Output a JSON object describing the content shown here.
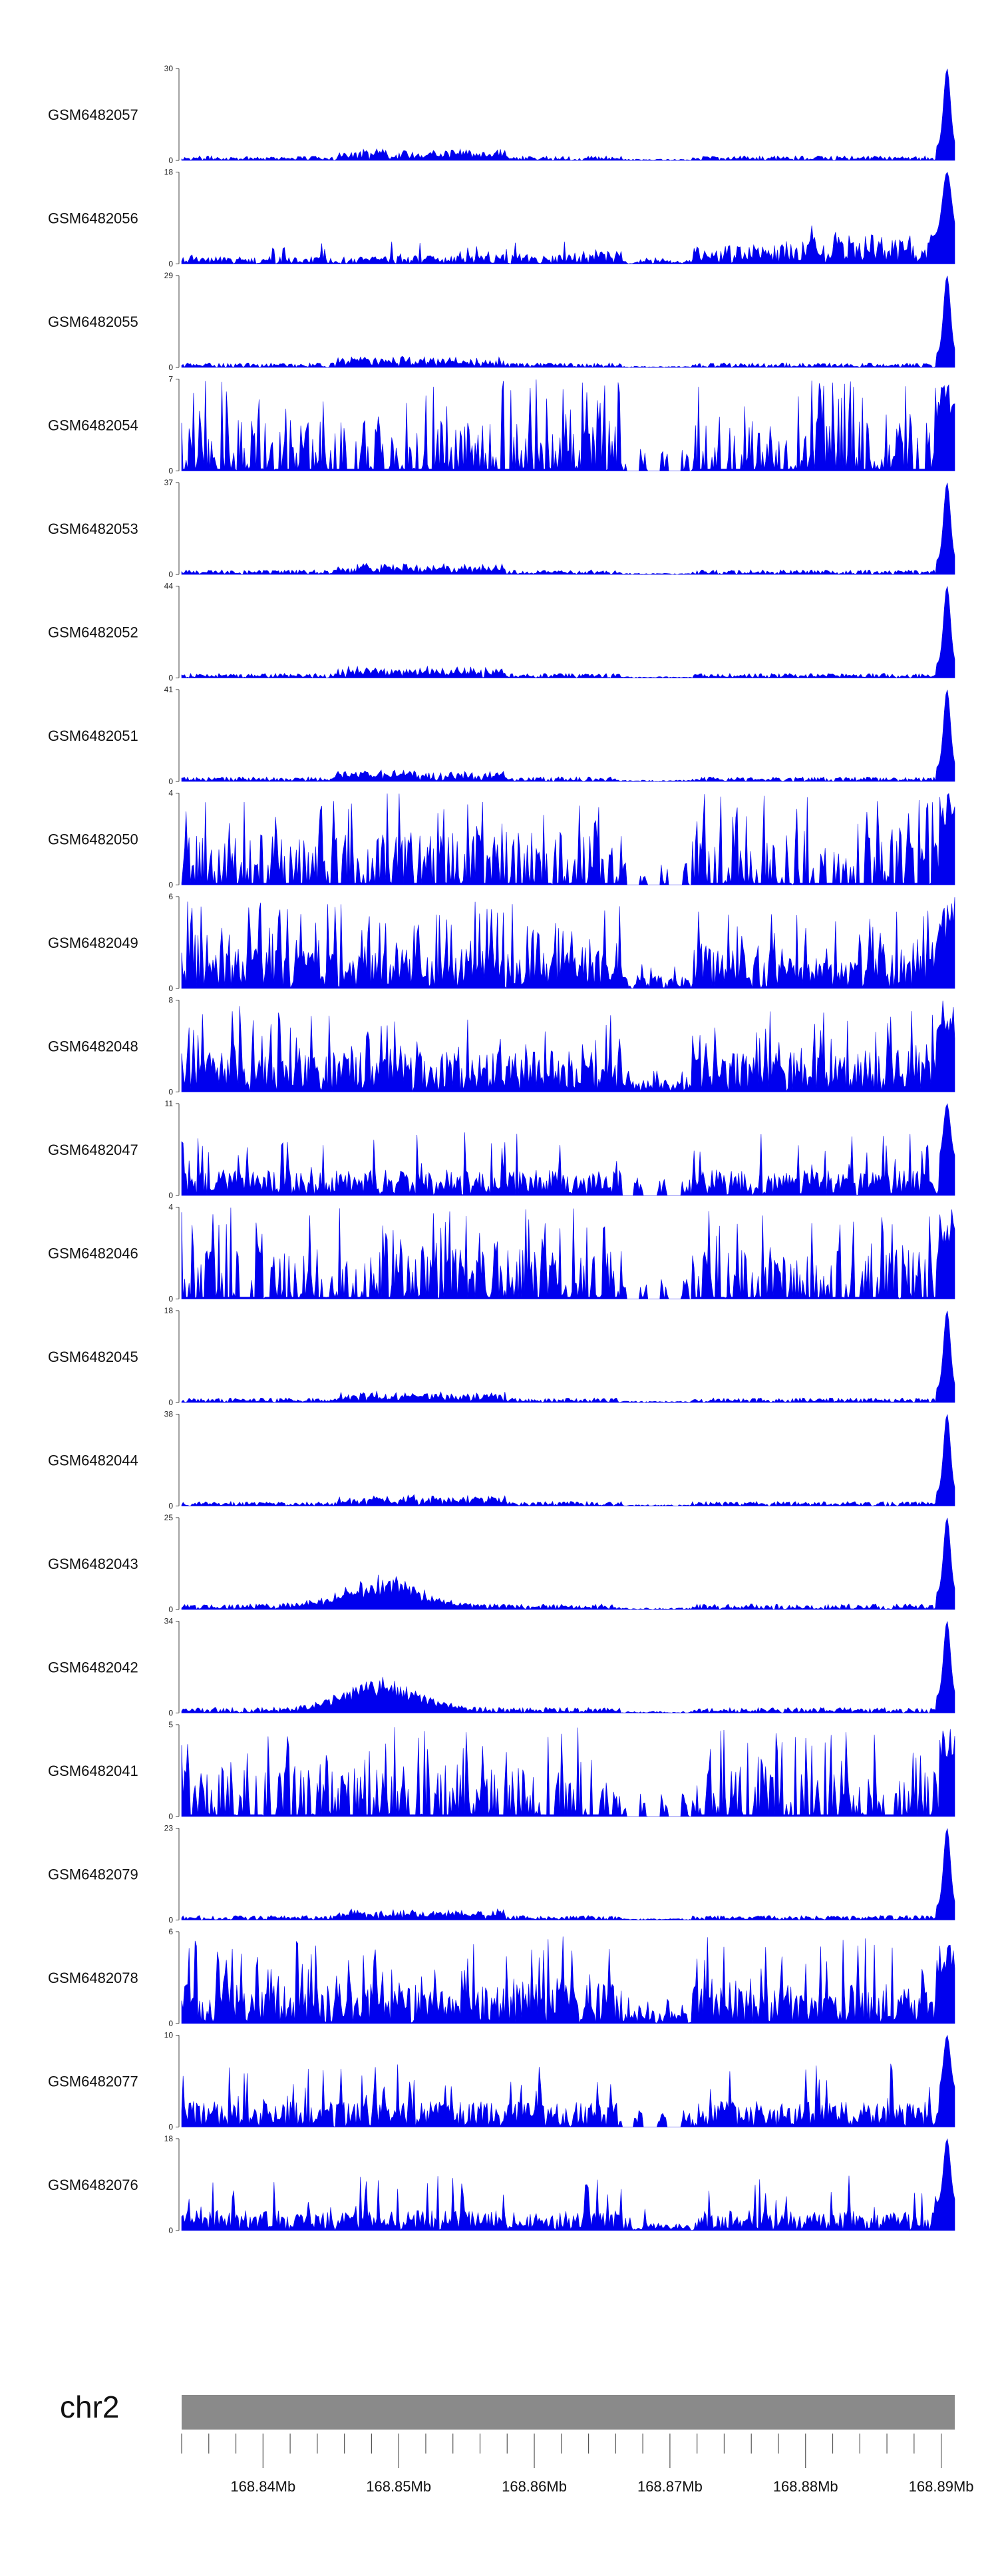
{
  "chart_data": {
    "type": "area",
    "colors": {
      "signal": "#0000ee",
      "ideogram": "#8a8a8a"
    },
    "tracks": [
      {
        "name": "GSM6482057",
        "ymax": 30,
        "ymin": 0,
        "profile": "sparse-peak"
      },
      {
        "name": "GSM6482056",
        "ymax": 18,
        "ymin": 0,
        "profile": "medium-rising"
      },
      {
        "name": "GSM6482055",
        "ymax": 29,
        "ymin": 0,
        "profile": "sparse-peak"
      },
      {
        "name": "GSM6482054",
        "ymax": 7,
        "ymin": 0,
        "profile": "dense-gap"
      },
      {
        "name": "GSM6482053",
        "ymax": 37,
        "ymin": 0,
        "profile": "sparse-peak"
      },
      {
        "name": "GSM6482052",
        "ymax": 44,
        "ymin": 0,
        "profile": "sparse-peak"
      },
      {
        "name": "GSM6482051",
        "ymax": 41,
        "ymin": 0,
        "profile": "sparse-peak"
      },
      {
        "name": "GSM6482050",
        "ymax": 4,
        "ymin": 0,
        "profile": "dense-gap"
      },
      {
        "name": "GSM6482049",
        "ymax": 6,
        "ymin": 0,
        "profile": "dense"
      },
      {
        "name": "GSM6482048",
        "ymax": 8,
        "ymin": 0,
        "profile": "dense"
      },
      {
        "name": "GSM6482047",
        "ymax": 11,
        "ymin": 0,
        "profile": "medium-gap"
      },
      {
        "name": "GSM6482046",
        "ymax": 4,
        "ymin": 0,
        "profile": "dense-gap"
      },
      {
        "name": "GSM6482045",
        "ymax": 18,
        "ymin": 0,
        "profile": "sparse-peak"
      },
      {
        "name": "GSM6482044",
        "ymax": 38,
        "ymin": 0,
        "profile": "sparse-peak"
      },
      {
        "name": "GSM6482043",
        "ymax": 25,
        "ymin": 0,
        "profile": "sparse-bump"
      },
      {
        "name": "GSM6482042",
        "ymax": 34,
        "ymin": 0,
        "profile": "sparse-bump"
      },
      {
        "name": "GSM6482041",
        "ymax": 5,
        "ymin": 0,
        "profile": "dense-gap"
      },
      {
        "name": "GSM6482079",
        "ymax": 23,
        "ymin": 0,
        "profile": "sparse-peak"
      },
      {
        "name": "GSM6482078",
        "ymax": 6,
        "ymin": 0,
        "profile": "dense"
      },
      {
        "name": "GSM6482077",
        "ymax": 10,
        "ymin": 0,
        "profile": "medium-gap"
      },
      {
        "name": "GSM6482076",
        "ymax": 18,
        "ymin": 0,
        "profile": "medium"
      }
    ],
    "xaxis": {
      "chromosome": "chr2",
      "range_mb": [
        168.834,
        168.891
      ],
      "tick_labels": [
        "168.84Mb",
        "168.85Mb",
        "168.86Mb",
        "168.87Mb",
        "168.88Mb",
        "168.89Mb"
      ],
      "tick_values_mb": [
        168.84,
        168.85,
        168.86,
        168.87,
        168.88,
        168.89
      ],
      "minor_tick_step_mb": 0.002
    }
  }
}
